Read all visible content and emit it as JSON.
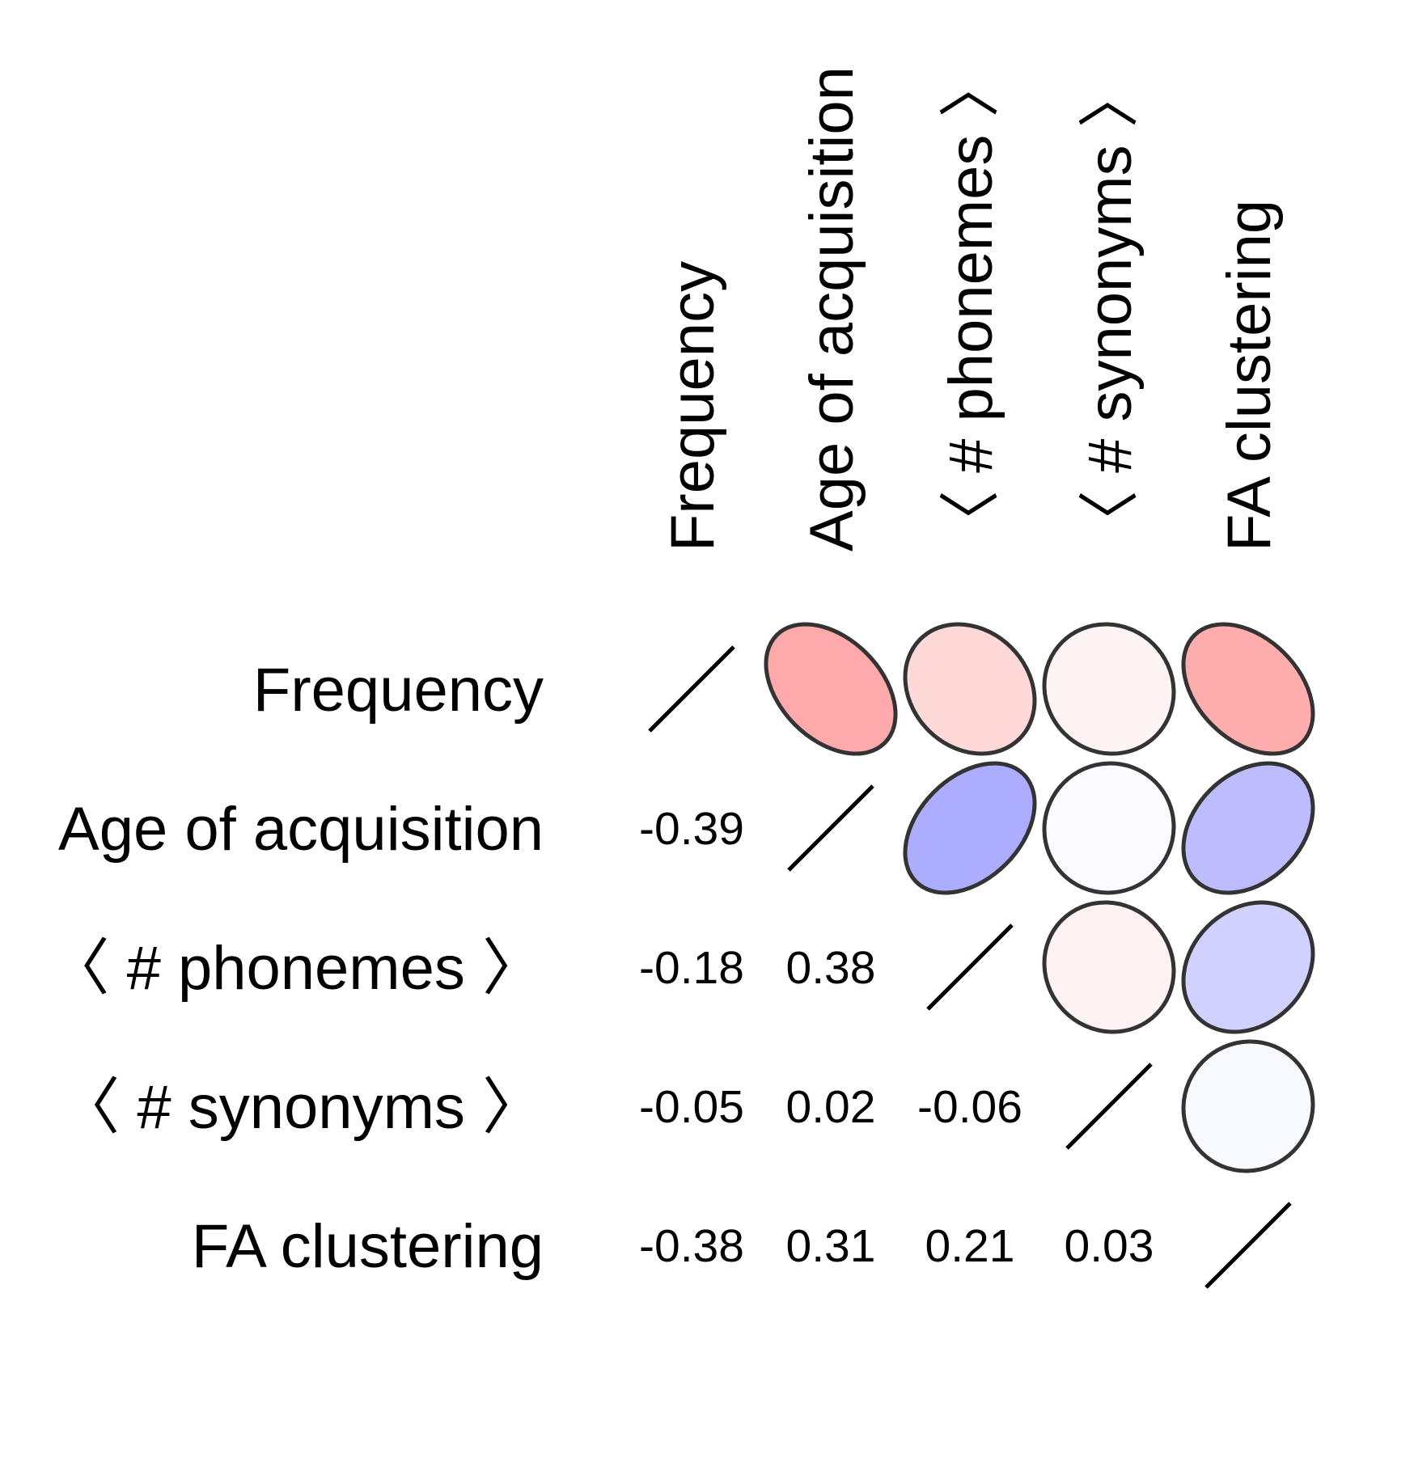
{
  "chart_data": {
    "type": "heatmap",
    "variables": [
      "Frequency",
      "Age of acquisition",
      "〈 # phonemes 〉",
      "〈 # synonyms 〉",
      "FA clustering"
    ],
    "matrix": [
      [
        1.0,
        -0.39,
        -0.18,
        -0.05,
        -0.38
      ],
      [
        -0.39,
        1.0,
        0.38,
        0.02,
        0.31
      ],
      [
        -0.18,
        0.38,
        1.0,
        -0.06,
        0.21
      ],
      [
        -0.05,
        0.02,
        -0.06,
        1.0,
        0.03
      ],
      [
        -0.38,
        0.31,
        0.21,
        0.03,
        1.0
      ]
    ],
    "lower_labels": [
      {
        "row": 1,
        "col": 0,
        "text": "-0.39"
      },
      {
        "row": 2,
        "col": 0,
        "text": "-0.18"
      },
      {
        "row": 2,
        "col": 1,
        "text": "0.38"
      },
      {
        "row": 3,
        "col": 0,
        "text": "-0.05"
      },
      {
        "row": 3,
        "col": 1,
        "text": "0.02"
      },
      {
        "row": 3,
        "col": 2,
        "text": "-0.06"
      },
      {
        "row": 4,
        "col": 0,
        "text": "-0.38"
      },
      {
        "row": 4,
        "col": 1,
        "text": "0.31"
      },
      {
        "row": 4,
        "col": 2,
        "text": "0.21"
      },
      {
        "row": 4,
        "col": 3,
        "text": "0.03"
      }
    ],
    "upper_panel": "ellipse",
    "diagonal_panel": "line",
    "color_scale": {
      "negative": "#ff0000",
      "positive": "#0000ff",
      "zero": "#ffffff"
    },
    "ellipse_stroke": "#333333",
    "text_color": "#000000"
  }
}
